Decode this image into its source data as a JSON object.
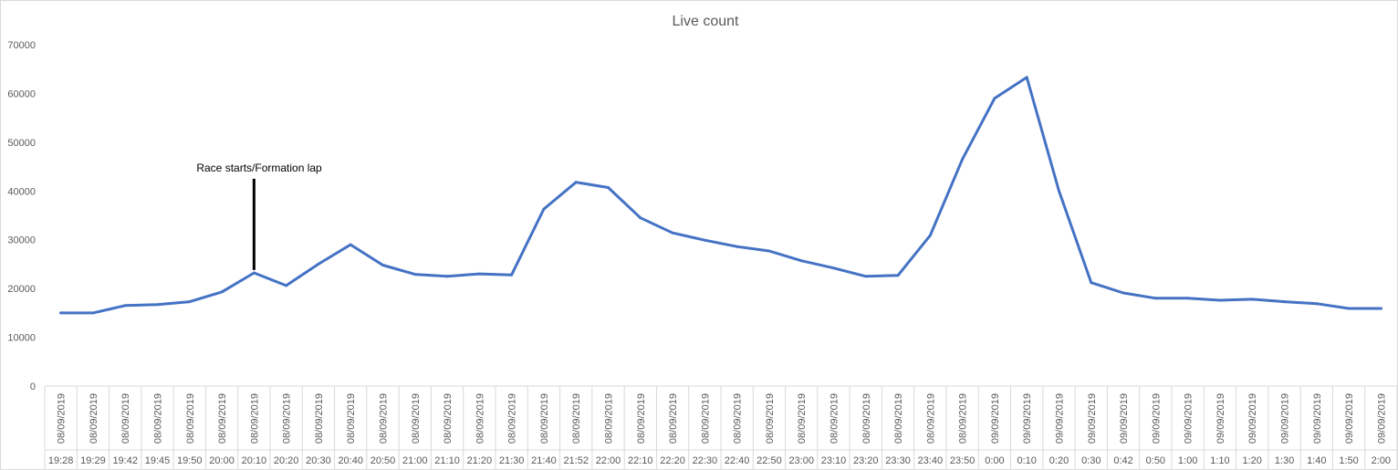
{
  "chart_data": {
    "type": "line",
    "title": "Live count",
    "xlabel": "",
    "ylabel": "",
    "ylim": [
      0,
      70000
    ],
    "yticks": [
      "0",
      "10000",
      "20000",
      "30000",
      "40000",
      "50000",
      "60000",
      "70000"
    ],
    "grid": false,
    "legend": "none",
    "colors": {
      "line": "#4472c4",
      "axis": "#d9d9d9",
      "text": "#595959"
    },
    "categories": [
      {
        "date": "08/09/2019",
        "time": "19:28"
      },
      {
        "date": "08/09/2019",
        "time": "19:29"
      },
      {
        "date": "08/09/2019",
        "time": "19:42"
      },
      {
        "date": "08/09/2019",
        "time": "19:45"
      },
      {
        "date": "08/09/2019",
        "time": "19:50"
      },
      {
        "date": "08/09/2019",
        "time": "20:00"
      },
      {
        "date": "08/09/2019",
        "time": "20:10"
      },
      {
        "date": "08/09/2019",
        "time": "20:20"
      },
      {
        "date": "08/09/2019",
        "time": "20:30"
      },
      {
        "date": "08/09/2019",
        "time": "20:40"
      },
      {
        "date": "08/09/2019",
        "time": "20:50"
      },
      {
        "date": "08/09/2019",
        "time": "21:00"
      },
      {
        "date": "08/09/2019",
        "time": "21:10"
      },
      {
        "date": "08/09/2019",
        "time": "21:20"
      },
      {
        "date": "08/09/2019",
        "time": "21:30"
      },
      {
        "date": "08/09/2019",
        "time": "21:40"
      },
      {
        "date": "08/09/2019",
        "time": "21:52"
      },
      {
        "date": "08/09/2019",
        "time": "22:00"
      },
      {
        "date": "08/09/2019",
        "time": "22:10"
      },
      {
        "date": "08/09/2019",
        "time": "22:20"
      },
      {
        "date": "08/09/2019",
        "time": "22:30"
      },
      {
        "date": "08/09/2019",
        "time": "22:40"
      },
      {
        "date": "08/09/2019",
        "time": "22:50"
      },
      {
        "date": "08/09/2019",
        "time": "23:00"
      },
      {
        "date": "08/09/2019",
        "time": "23:10"
      },
      {
        "date": "08/09/2019",
        "time": "23:20"
      },
      {
        "date": "08/09/2019",
        "time": "23:30"
      },
      {
        "date": "08/09/2019",
        "time": "23:40"
      },
      {
        "date": "08/09/2019",
        "time": "23:50"
      },
      {
        "date": "09/09/2019",
        "time": "0:00"
      },
      {
        "date": "09/09/2019",
        "time": "0:10"
      },
      {
        "date": "09/09/2019",
        "time": "0:20"
      },
      {
        "date": "09/09/2019",
        "time": "0:30"
      },
      {
        "date": "09/09/2019",
        "time": "0:42"
      },
      {
        "date": "09/09/2019",
        "time": "0:50"
      },
      {
        "date": "09/09/2019",
        "time": "1:00"
      },
      {
        "date": "09/09/2019",
        "time": "1:10"
      },
      {
        "date": "09/09/2019",
        "time": "1:20"
      },
      {
        "date": "09/09/2019",
        "time": "1:30"
      },
      {
        "date": "09/09/2019",
        "time": "1:40"
      },
      {
        "date": "09/09/2019",
        "time": "1:50"
      },
      {
        "date": "09/09/2019",
        "time": "2:00"
      }
    ],
    "series": [
      {
        "values": [
          15000,
          15000,
          16500,
          16700,
          17300,
          19300,
          23200,
          20600,
          25000,
          29000,
          24800,
          22900,
          22500,
          23000,
          22800,
          36300,
          41800,
          40700,
          34500,
          31400,
          29900,
          28600,
          27700,
          25700,
          24200,
          22500,
          22700,
          30900,
          46500,
          59000,
          63300,
          40000,
          21200,
          19100,
          18000,
          18000,
          17600,
          17800,
          17300,
          16900,
          15900,
          15900
        ]
      }
    ],
    "annotations": [
      {
        "text": "Race starts/Formation lap",
        "category_index": 6,
        "y_from": 23800,
        "y_to": 42500
      }
    ]
  }
}
